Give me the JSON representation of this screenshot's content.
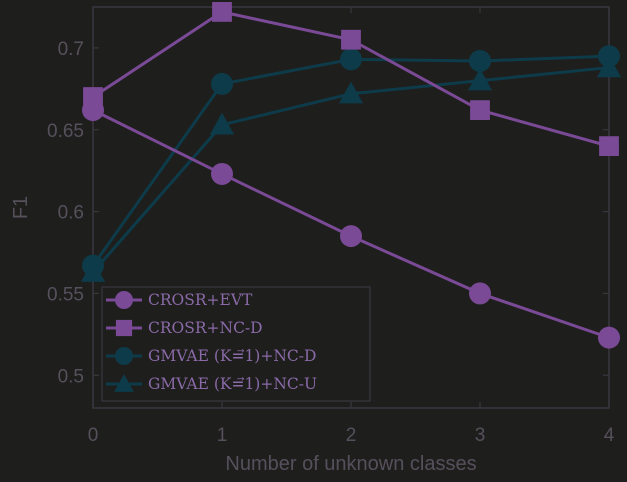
{
  "chart_data": {
    "type": "line",
    "xlabel": "Number of unknown classes",
    "ylabel": "F1",
    "xlim": [
      0,
      4
    ],
    "ylim": [
      0.48,
      0.725
    ],
    "x": [
      0,
      1,
      2,
      3,
      4
    ],
    "xticks": [
      "0",
      "1",
      "2",
      "3",
      "4"
    ],
    "yticks": [
      0.5,
      0.55,
      0.6,
      0.65,
      0.7
    ],
    "ytick_labels": [
      "0.5",
      "0.55",
      "0.6",
      "0.65",
      "0.7"
    ],
    "grid": false,
    "legend_position": "bottom-left",
    "series": [
      {
        "name": "CROSR+EVT",
        "marker": "circle",
        "color": "#7a4a96",
        "values": [
          0.662,
          0.623,
          0.585,
          0.55,
          0.523
        ]
      },
      {
        "name": "CROSR+NC-D",
        "marker": "square",
        "color": "#7a4a96",
        "values": [
          0.67,
          0.722,
          0.705,
          0.662,
          0.64
        ]
      },
      {
        "name": "GMVAE (K=⃗1)+NC-D",
        "marker": "circle",
        "color": "#0d3b4a",
        "values": [
          0.567,
          0.678,
          0.693,
          0.692,
          0.695
        ]
      },
      {
        "name": "GMVAE (K=⃗1)+NC-U",
        "marker": "triangle",
        "color": "#0d3b4a",
        "values": [
          0.563,
          0.653,
          0.672,
          0.68,
          0.688
        ]
      }
    ]
  }
}
